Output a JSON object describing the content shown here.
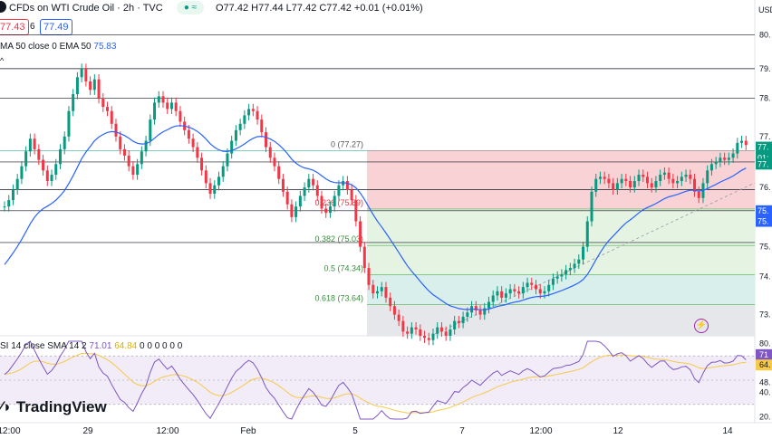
{
  "header": {
    "symbol": "CFDs on WTI Crude Oil · 2h · TVC",
    "ohlc": "O77.42 H77.44 L77.42 C77.42 +0.01 (+0.01%)",
    "bid": "77.43",
    "spread": "6",
    "ask": "77.49",
    "ema_label": "MA 50 close 0 EMA 50",
    "ema_value": "75.83",
    "rsi_label": "SI 14 close SMA 14 2",
    "rsi_value": "71.01",
    "rsi_sma_value": "64.84",
    "rsi_extra": "0 0 0 0 0 0"
  },
  "brand": "TradingView",
  "currency": "USD",
  "colors": {
    "up": "#089981",
    "down": "#f23645",
    "ema": "#2962ff",
    "rsi": "#7e57c2",
    "rsi_sma": "#f7c948"
  },
  "chart_data": {
    "type": "candlestick",
    "ylim": [
      72.9,
      80.5
    ],
    "y_ticks": [
      "80.",
      "79.",
      "78.",
      "77.",
      "76.",
      "75.",
      "75.",
      "74.",
      "73."
    ],
    "x_ticks": [
      "12:00",
      "29",
      "12:00",
      "Feb",
      "5",
      "7",
      "12:00",
      "12",
      "14"
    ],
    "price_lines": [
      80.0,
      79.2,
      78.5,
      77.0,
      76.35,
      75.85,
      75.1
    ],
    "close": [
      75.95,
      76.1,
      76.35,
      76.6,
      76.9,
      77.25,
      77.55,
      77.3,
      77.05,
      76.8,
      76.55,
      76.7,
      76.95,
      77.3,
      77.6,
      78.2,
      78.6,
      79.0,
      79.2,
      78.9,
      78.7,
      78.95,
      78.5,
      78.3,
      78.2,
      77.9,
      77.6,
      77.3,
      77.15,
      76.9,
      76.7,
      76.95,
      77.25,
      77.5,
      78.0,
      78.4,
      78.55,
      78.4,
      78.25,
      78.4,
      78.2,
      77.95,
      77.75,
      77.55,
      77.35,
      77.1,
      76.8,
      76.5,
      76.25,
      76.45,
      76.65,
      76.9,
      77.2,
      77.5,
      77.75,
      77.9,
      78.1,
      78.25,
      78.2,
      78.0,
      77.7,
      77.35,
      77.1,
      76.9,
      76.6,
      76.3,
      76.0,
      75.7,
      75.95,
      76.2,
      76.4,
      76.6,
      76.45,
      76.2,
      75.9,
      75.8,
      75.95,
      76.2,
      76.45,
      76.55,
      76.35,
      76.1,
      75.6,
      75.0,
      74.5,
      74.1,
      73.9,
      73.95,
      74.05,
      73.8,
      73.6,
      73.4,
      73.25,
      73.0,
      72.95,
      73.1,
      73.05,
      72.9,
      72.85,
      72.8,
      72.95,
      73.1,
      73.0,
      72.9,
      73.05,
      73.25,
      73.2,
      73.35,
      73.45,
      73.6,
      73.5,
      73.4,
      73.55,
      73.7,
      73.85,
      73.95,
      73.8,
      73.9,
      74.0,
      73.95,
      73.9,
      74.05,
      74.15,
      74.1,
      74.0,
      73.9,
      73.95,
      74.1,
      74.25,
      74.3,
      74.35,
      74.45,
      74.5,
      74.6,
      74.7,
      75.0,
      75.6,
      76.3,
      76.6,
      76.65,
      76.6,
      76.5,
      76.35,
      76.5,
      76.6,
      76.55,
      76.4,
      76.55,
      76.7,
      76.65,
      76.5,
      76.4,
      76.55,
      76.7,
      76.75,
      76.6,
      76.5,
      76.55,
      76.65,
      76.7,
      76.6,
      76.3,
      76.15,
      76.5,
      76.8,
      76.95,
      77.0,
      77.1,
      77.05,
      77.1,
      77.2,
      77.45,
      77.5,
      77.4
    ]
  },
  "fib_levels": [
    {
      "label": "0 (77.27)",
      "price": 77.27
    },
    {
      "label": "0.236 (75.89)",
      "price": 75.89
    },
    {
      "label": "0.382 (75.03)",
      "price": 75.03
    },
    {
      "label": "0.5 (74.34)",
      "price": 74.34
    },
    {
      "label": "0.618 (73.64)",
      "price": 73.64
    }
  ],
  "rsi_axis": [
    "80.",
    "71",
    "64.",
    "48.",
    "40.",
    "20."
  ],
  "price_tags": [
    "77.",
    "01:",
    "77.",
    "75.",
    "75."
  ]
}
